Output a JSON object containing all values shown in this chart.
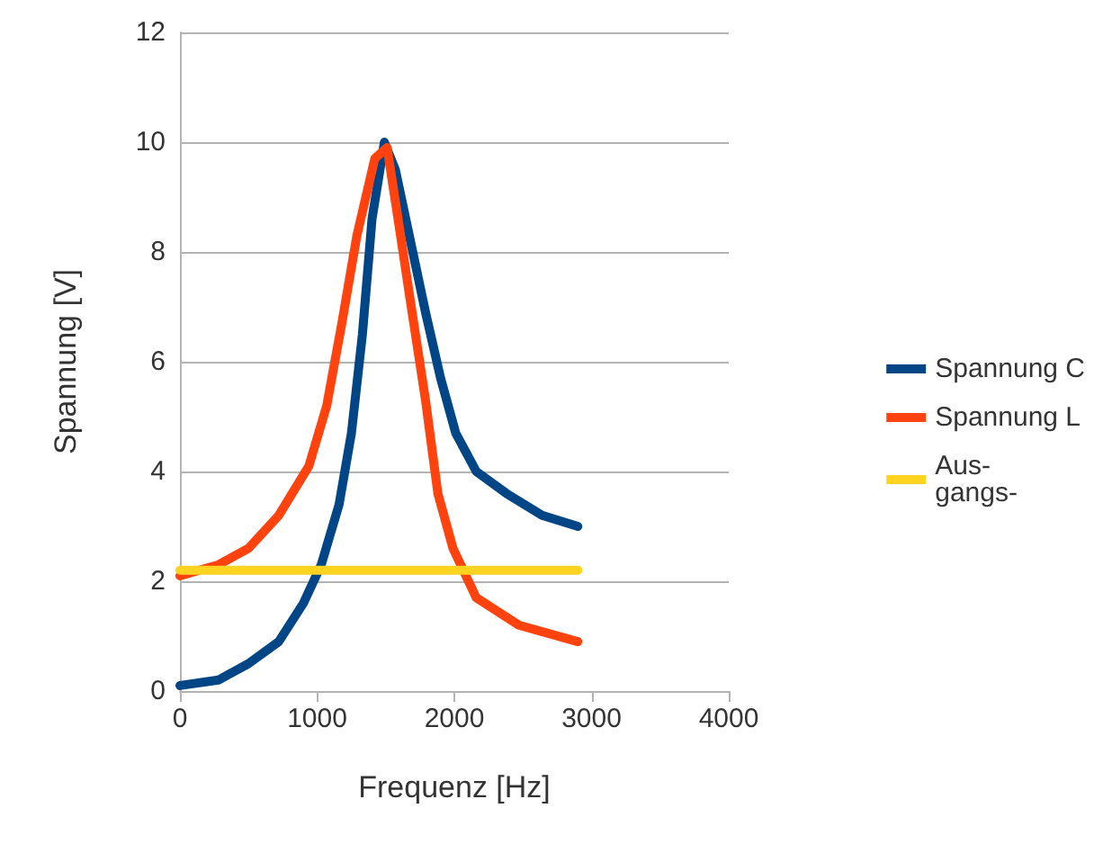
{
  "chart_data": {
    "type": "line",
    "xlabel": "Frequenz [Hz]",
    "ylabel": "Spannung [V]",
    "xlim": [
      0,
      4000
    ],
    "xticks": [
      0,
      1000,
      2000,
      3000,
      4000
    ],
    "ylim": [
      0,
      12
    ],
    "yticks": [
      0,
      2,
      4,
      6,
      8,
      10,
      12
    ],
    "grid": "y",
    "legend": "right",
    "marker": "none",
    "line_style": "solid",
    "series": [
      {
        "name": "Spannung C",
        "color": "#004586",
        "x": [
          0,
          280,
          500,
          720,
          900,
          1030,
          1160,
          1250,
          1330,
          1400,
          1490,
          1570,
          1680,
          1790,
          1900,
          2010,
          2160,
          2380,
          2640,
          2900
        ],
        "values": [
          0.1,
          0.2,
          0.5,
          0.9,
          1.6,
          2.3,
          3.4,
          4.7,
          6.5,
          8.6,
          10,
          9.5,
          8.2,
          6.9,
          5.7,
          4.7,
          4.0,
          3.6,
          3.2,
          3.0
        ]
      },
      {
        "name": "Spannung L",
        "color": "#ff420e",
        "x": [
          0,
          280,
          500,
          720,
          940,
          1070,
          1180,
          1290,
          1420,
          1510,
          1590,
          1680,
          1790,
          1880,
          1990,
          2160,
          2470,
          2900
        ],
        "values": [
          2.1,
          2.3,
          2.6,
          3.2,
          4.1,
          5.2,
          6.7,
          8.3,
          9.7,
          9.9,
          8.6,
          7.1,
          5.3,
          3.6,
          2.6,
          1.7,
          1.2,
          0.9
        ]
      },
      {
        "name": "Aus-\ngangs-",
        "color": "#ffd320",
        "x": [
          0,
          2900
        ],
        "values": [
          2.2,
          2.2
        ]
      }
    ]
  }
}
